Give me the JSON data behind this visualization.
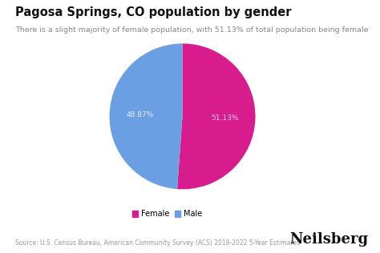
{
  "title": "Pagosa Springs, CO population by gender",
  "subtitle": "There is a slight majority of female population, with 51.13% of total population being female",
  "slices": [
    51.13,
    48.87
  ],
  "labels": [
    "Female",
    "Male"
  ],
  "colors": [
    "#d81b8d",
    "#6b9fe4"
  ],
  "pct_labels": [
    "51.13%",
    "48.87%"
  ],
  "legend_labels": [
    "Female",
    "Male"
  ],
  "source_text": "Source: U.S. Census Bureau, American Community Survey (ACS) 2018-2022 5-Year Estimates",
  "brand_text": "Neilsberg",
  "background_color": "#ffffff",
  "text_color_white": "#ffffffcc",
  "startangle": 90,
  "title_fontsize": 10.5,
  "subtitle_fontsize": 6.8,
  "legend_fontsize": 7,
  "source_fontsize": 5.5,
  "brand_fontsize": 13
}
